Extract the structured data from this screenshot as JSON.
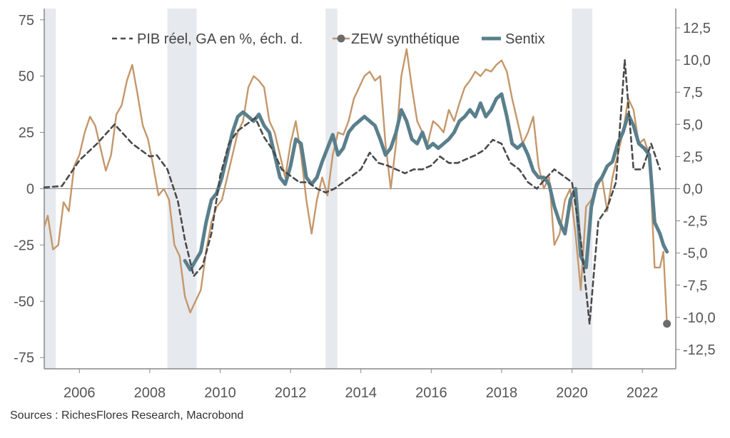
{
  "source": "Sources : RichesFlores Research, Macrobond",
  "colors": {
    "pib": "#4a4a4a",
    "zew": "#c4976a",
    "sentix": "#5a7f8c",
    "recession": "#e6e9ee",
    "axis": "#888888"
  },
  "chart_data": {
    "type": "line",
    "legend_placement": "top",
    "grid": false,
    "left_axis": {
      "ylim": [
        -80,
        80
      ],
      "ticks": [
        75,
        50,
        25,
        0,
        -25,
        -50,
        -75
      ],
      "tick_labels": [
        "75",
        "50",
        "25",
        "0",
        "-25",
        "-50",
        "-75"
      ]
    },
    "right_axis": {
      "ylim": [
        -14,
        14
      ],
      "ticks": [
        12.5,
        10,
        7.5,
        5,
        2.5,
        0,
        -2.5,
        -5,
        -7.5,
        -10,
        -12.5
      ],
      "tick_labels": [
        "12,5",
        "10,0",
        "7,5",
        "5,0",
        "2,5",
        "0,0",
        "-2,5",
        "-5,0",
        "-7,5",
        "-10,0",
        "-12,5"
      ]
    },
    "x_axis": {
      "xlim": [
        2005.0,
        2022.95
      ],
      "ticks": [
        2006,
        2008,
        2010,
        2012,
        2014,
        2016,
        2018,
        2020,
        2022
      ],
      "tick_labels": [
        "2006",
        "2008",
        "2010",
        "2012",
        "2014",
        "2016",
        "2018",
        "2020",
        "2022"
      ]
    },
    "recession_bands": [
      [
        2005.0,
        2005.33
      ],
      [
        2008.5,
        2009.33
      ],
      [
        2013.0,
        2013.33
      ],
      [
        2020.0,
        2020.58
      ]
    ],
    "series": [
      {
        "name": "PIB réel, GA en %, éch. d.",
        "axis": "right",
        "style": "dashed",
        "x": [
          2005.0,
          2005.5,
          2006.0,
          2006.5,
          2007.0,
          2007.5,
          2008.0,
          2008.2,
          2008.5,
          2008.8,
          2009.0,
          2009.25,
          2009.5,
          2009.75,
          2010.0,
          2010.25,
          2010.5,
          2010.75,
          2011.0,
          2011.25,
          2011.5,
          2011.75,
          2012.0,
          2012.25,
          2012.5,
          2012.75,
          2013.0,
          2013.25,
          2013.5,
          2013.75,
          2014.0,
          2014.25,
          2014.5,
          2014.75,
          2015.0,
          2015.25,
          2015.5,
          2015.75,
          2016.0,
          2016.25,
          2016.5,
          2016.75,
          2017.0,
          2017.25,
          2017.5,
          2017.75,
          2018.0,
          2018.25,
          2018.5,
          2018.75,
          2019.0,
          2019.25,
          2019.5,
          2019.75,
          2020.0,
          2020.25,
          2020.5,
          2020.75,
          2021.0,
          2021.25,
          2021.5,
          2021.75,
          2022.0,
          2022.25,
          2022.5
        ],
        "values": [
          0.1,
          0.2,
          2.2,
          3.5,
          5.0,
          3.5,
          2.5,
          2.6,
          1.5,
          -1.0,
          -4.0,
          -6.8,
          -6.0,
          -3.5,
          1.0,
          3.5,
          4.5,
          5.0,
          5.5,
          4.0,
          3.0,
          1.5,
          1.0,
          0.5,
          0.5,
          0.0,
          -0.3,
          0.0,
          0.5,
          1.0,
          1.5,
          2.8,
          2.0,
          1.8,
          1.5,
          1.2,
          1.5,
          1.5,
          1.8,
          2.5,
          2.0,
          2.0,
          2.3,
          2.6,
          3.0,
          3.8,
          3.5,
          2.0,
          1.5,
          0.5,
          0.0,
          0.8,
          1.5,
          1.0,
          0.5,
          -4.0,
          -10.5,
          -2.5,
          -1.5,
          0.5,
          10.0,
          1.5,
          1.5,
          3.5,
          1.5
        ]
      },
      {
        "name": "ZEW synthétique",
        "axis": "left",
        "style": "solid",
        "x": [
          2005.0,
          2005.1,
          2005.25,
          2005.4,
          2005.55,
          2005.7,
          2005.85,
          2006.0,
          2006.15,
          2006.3,
          2006.45,
          2006.6,
          2006.75,
          2006.9,
          2007.05,
          2007.2,
          2007.35,
          2007.5,
          2007.65,
          2007.8,
          2007.95,
          2008.1,
          2008.25,
          2008.4,
          2008.55,
          2008.7,
          2008.85,
          2009.0,
          2009.15,
          2009.3,
          2009.45,
          2009.6,
          2009.75,
          2009.9,
          2010.05,
          2010.2,
          2010.35,
          2010.5,
          2010.65,
          2010.8,
          2010.95,
          2011.1,
          2011.25,
          2011.4,
          2011.55,
          2011.7,
          2011.85,
          2012.0,
          2012.15,
          2012.3,
          2012.45,
          2012.6,
          2012.75,
          2012.9,
          2013.05,
          2013.2,
          2013.35,
          2013.5,
          2013.65,
          2013.8,
          2013.95,
          2014.1,
          2014.25,
          2014.4,
          2014.55,
          2014.7,
          2014.85,
          2015.0,
          2015.15,
          2015.3,
          2015.45,
          2015.6,
          2015.75,
          2015.9,
          2016.05,
          2016.2,
          2016.35,
          2016.5,
          2016.65,
          2016.8,
          2016.95,
          2017.1,
          2017.25,
          2017.4,
          2017.55,
          2017.7,
          2017.85,
          2018.0,
          2018.15,
          2018.3,
          2018.45,
          2018.6,
          2018.75,
          2018.9,
          2019.05,
          2019.2,
          2019.35,
          2019.5,
          2019.65,
          2019.8,
          2019.95,
          2020.1,
          2020.25,
          2020.4,
          2020.55,
          2020.7,
          2020.85,
          2021.0,
          2021.15,
          2021.3,
          2021.45,
          2021.6,
          2021.75,
          2021.9,
          2022.05,
          2022.2,
          2022.35,
          2022.5,
          2022.6,
          2022.7
        ],
        "values": [
          -17,
          -12,
          -27,
          -25,
          -6,
          -10,
          10,
          15,
          25,
          32,
          28,
          18,
          8,
          15,
          33,
          37,
          48,
          55,
          42,
          28,
          22,
          10,
          -3,
          0,
          -5,
          -25,
          -30,
          -48,
          -55,
          -50,
          -45,
          -28,
          -15,
          -8,
          -5,
          5,
          15,
          25,
          30,
          45,
          50,
          48,
          45,
          30,
          25,
          15,
          5,
          20,
          30,
          15,
          -5,
          -20,
          -5,
          5,
          -3,
          15,
          25,
          24,
          30,
          40,
          45,
          50,
          52,
          48,
          50,
          20,
          0,
          20,
          50,
          62,
          45,
          30,
          25,
          20,
          30,
          28,
          25,
          35,
          30,
          38,
          45,
          48,
          52,
          50,
          53,
          52,
          55,
          57,
          52,
          40,
          30,
          20,
          25,
          32,
          10,
          0,
          5,
          -25,
          -20,
          -5,
          0,
          -20,
          -45,
          -8,
          -5,
          0,
          5,
          -10,
          5,
          15,
          25,
          40,
          35,
          20,
          22,
          15,
          -35,
          -35,
          -28,
          -60
        ]
      },
      {
        "name": "Sentix",
        "axis": "left",
        "style": "thick",
        "x": [
          2009.0,
          2009.15,
          2009.3,
          2009.45,
          2009.6,
          2009.75,
          2009.9,
          2010.05,
          2010.2,
          2010.35,
          2010.5,
          2010.65,
          2010.8,
          2010.95,
          2011.1,
          2011.25,
          2011.4,
          2011.55,
          2011.7,
          2011.85,
          2012.0,
          2012.15,
          2012.3,
          2012.45,
          2012.6,
          2012.75,
          2012.9,
          2013.05,
          2013.2,
          2013.35,
          2013.5,
          2013.65,
          2013.8,
          2013.95,
          2014.1,
          2014.25,
          2014.4,
          2014.55,
          2014.7,
          2014.85,
          2015.0,
          2015.15,
          2015.3,
          2015.45,
          2015.6,
          2015.75,
          2015.9,
          2016.05,
          2016.2,
          2016.35,
          2016.5,
          2016.65,
          2016.8,
          2016.95,
          2017.1,
          2017.25,
          2017.4,
          2017.55,
          2017.7,
          2017.85,
          2018.0,
          2018.15,
          2018.3,
          2018.45,
          2018.6,
          2018.75,
          2018.9,
          2019.05,
          2019.2,
          2019.35,
          2019.5,
          2019.65,
          2019.8,
          2019.95,
          2020.1,
          2020.25,
          2020.4,
          2020.55,
          2020.7,
          2020.85,
          2021.0,
          2021.15,
          2021.3,
          2021.45,
          2021.6,
          2021.75,
          2021.9,
          2022.05,
          2022.2,
          2022.35,
          2022.5,
          2022.6,
          2022.7
        ],
        "values": [
          -32,
          -36,
          -32,
          -28,
          -15,
          -5,
          -2,
          5,
          15,
          25,
          32,
          34,
          32,
          30,
          33,
          28,
          25,
          15,
          5,
          2,
          10,
          22,
          20,
          5,
          2,
          5,
          12,
          18,
          24,
          15,
          18,
          25,
          28,
          30,
          32,
          30,
          28,
          22,
          15,
          18,
          25,
          35,
          30,
          22,
          20,
          25,
          18,
          20,
          18,
          20,
          22,
          25,
          30,
          32,
          35,
          32,
          38,
          32,
          35,
          40,
          42,
          32,
          20,
          18,
          20,
          15,
          8,
          5,
          5,
          2,
          -8,
          -15,
          -20,
          -5,
          0,
          -30,
          -35,
          -8,
          2,
          5,
          10,
          12,
          20,
          25,
          33,
          28,
          20,
          18,
          15,
          -15,
          -20,
          -25,
          -28
        ]
      }
    ]
  }
}
